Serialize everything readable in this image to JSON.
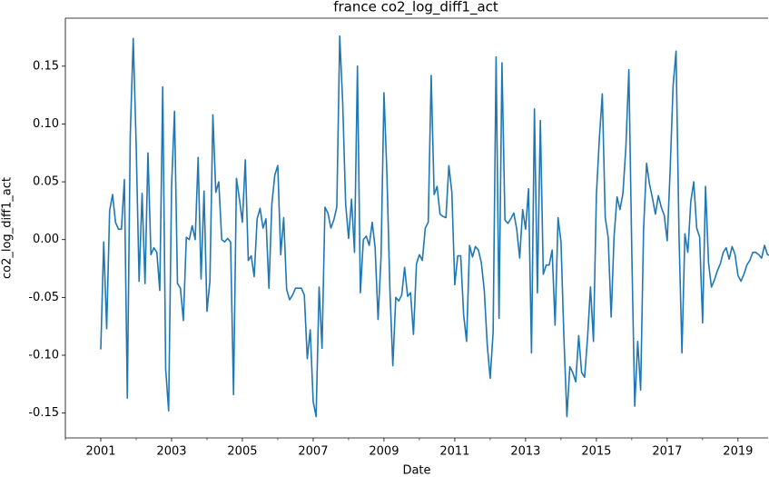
{
  "chart_data": {
    "type": "line",
    "title": "france co2_log_diff1_act",
    "xlabel": "Date",
    "ylabel": "co2_log_diff1_act",
    "xlim": [
      2000,
      2019.85
    ],
    "xticks": [
      2001,
      2003,
      2005,
      2007,
      2009,
      2011,
      2013,
      2015,
      2017,
      2019
    ],
    "xminorticks": [
      2000,
      2002,
      2004,
      2006,
      2008,
      2010,
      2012,
      2014,
      2016,
      2018
    ],
    "ylim": [
      -0.1715,
      0.1915
    ],
    "yticks": [
      {
        "value": -0.15,
        "label": "-0.15"
      },
      {
        "value": -0.1,
        "label": "-0.10"
      },
      -0.05,
      {
        "value": 0,
        "label": "0.00"
      },
      0.05,
      {
        "value": 0.1,
        "label": "0.10"
      },
      0.15
    ],
    "x": [
      2001,
      2001.083,
      2001.167,
      2001.25,
      2001.333,
      2001.417,
      2001.5,
      2001.583,
      2001.667,
      2001.75,
      2001.833,
      2001.917,
      2002,
      2002.083,
      2002.167,
      2002.25,
      2002.333,
      2002.417,
      2002.5,
      2002.583,
      2002.667,
      2002.75,
      2002.833,
      2002.917,
      2003,
      2003.083,
      2003.167,
      2003.25,
      2003.333,
      2003.417,
      2003.5,
      2003.583,
      2003.667,
      2003.75,
      2003.833,
      2003.917,
      2004,
      2004.083,
      2004.167,
      2004.25,
      2004.333,
      2004.417,
      2004.5,
      2004.583,
      2004.667,
      2004.75,
      2004.833,
      2004.917,
      2005,
      2005.083,
      2005.167,
      2005.25,
      2005.333,
      2005.417,
      2005.5,
      2005.583,
      2005.667,
      2005.75,
      2005.833,
      2005.917,
      2006,
      2006.083,
      2006.167,
      2006.25,
      2006.333,
      2006.417,
      2006.5,
      2006.583,
      2006.667,
      2006.75,
      2006.833,
      2006.917,
      2007,
      2007.083,
      2007.167,
      2007.25,
      2007.333,
      2007.417,
      2007.5,
      2007.583,
      2007.667,
      2007.75,
      2007.833,
      2007.917,
      2008,
      2008.083,
      2008.167,
      2008.25,
      2008.333,
      2008.417,
      2008.5,
      2008.583,
      2008.667,
      2008.75,
      2008.833,
      2008.917,
      2009,
      2009.083,
      2009.167,
      2009.25,
      2009.333,
      2009.417,
      2009.5,
      2009.583,
      2009.667,
      2009.75,
      2009.833,
      2009.917,
      2010,
      2010.083,
      2010.167,
      2010.25,
      2010.333,
      2010.417,
      2010.5,
      2010.583,
      2010.667,
      2010.75,
      2010.833,
      2010.917,
      2011,
      2011.083,
      2011.167,
      2011.25,
      2011.333,
      2011.417,
      2011.5,
      2011.583,
      2011.667,
      2011.75,
      2011.833,
      2011.917,
      2012,
      2012.083,
      2012.167,
      2012.25,
      2012.333,
      2012.417,
      2012.5,
      2012.583,
      2012.667,
      2012.75,
      2012.833,
      2012.917,
      2013,
      2013.083,
      2013.167,
      2013.25,
      2013.333,
      2013.417,
      2013.5,
      2013.583,
      2013.667,
      2013.75,
      2013.833,
      2013.917,
      2014,
      2014.083,
      2014.167,
      2014.25,
      2014.333,
      2014.417,
      2014.5,
      2014.583,
      2014.667,
      2014.75,
      2014.833,
      2014.917,
      2015,
      2015.083,
      2015.167,
      2015.25,
      2015.333,
      2015.417,
      2015.5,
      2015.583,
      2015.667,
      2015.75,
      2015.833,
      2015.917,
      2016,
      2016.083,
      2016.167,
      2016.25,
      2016.333,
      2016.417,
      2016.5,
      2016.583,
      2016.667,
      2016.75,
      2016.833,
      2016.917,
      2017,
      2017.083,
      2017.167,
      2017.25,
      2017.333,
      2017.417,
      2017.5,
      2017.583,
      2017.667,
      2017.75,
      2017.833,
      2017.917,
      2018,
      2018.083,
      2018.167,
      2018.25,
      2018.333,
      2018.417,
      2018.5,
      2018.583,
      2018.667,
      2018.75,
      2018.833,
      2018.917,
      2019,
      2019.083,
      2019.167,
      2019.25,
      2019.333,
      2019.417,
      2019.5,
      2019.583,
      2019.667,
      2019.75,
      2019.833,
      2019.917
    ],
    "series": [
      {
        "color": "#1f77b4",
        "values": [
          -0.095,
          -0.002,
          -0.077,
          0.025,
          0.039,
          0.015,
          0.009,
          0.009,
          0.052,
          -0.137,
          0.09,
          0.174,
          0.082,
          -0.036,
          0.04,
          -0.038,
          0.075,
          -0.013,
          -0.007,
          -0.011,
          -0.044,
          0.132,
          -0.112,
          -0.148,
          0.046,
          0.111,
          -0.038,
          -0.042,
          -0.07,
          0.002,
          0.0,
          0.012,
          0.0,
          0.071,
          -0.034,
          0.042,
          -0.062,
          -0.036,
          0.108,
          0.041,
          0.05,
          0.0,
          -0.002,
          0.001,
          -0.002,
          -0.134,
          0.053,
          0.035,
          0.015,
          0.069,
          -0.018,
          -0.014,
          -0.032,
          0.018,
          0.027,
          0.01,
          0.018,
          -0.042,
          0.031,
          0.056,
          0.064,
          -0.013,
          0.019,
          -0.043,
          -0.052,
          -0.048,
          -0.042,
          -0.042,
          -0.042,
          -0.048,
          -0.103,
          -0.078,
          -0.14,
          -0.153,
          -0.041,
          -0.094,
          0.028,
          0.023,
          0.01,
          0.017,
          0.028,
          0.176,
          0.119,
          0.031,
          0.001,
          0.035,
          -0.011,
          0.15,
          -0.046,
          0.0,
          0.003,
          -0.005,
          0.015,
          -0.007,
          -0.069,
          -0.015,
          0.127,
          0.057,
          -0.043,
          -0.109,
          -0.05,
          -0.053,
          -0.048,
          -0.024,
          -0.049,
          -0.046,
          -0.082,
          -0.021,
          -0.013,
          -0.018,
          0.01,
          0.015,
          0.142,
          0.039,
          0.046,
          0.022,
          0.02,
          0.019,
          0.064,
          0.041,
          -0.039,
          -0.014,
          -0.014,
          -0.065,
          -0.088,
          -0.005,
          -0.015,
          -0.006,
          -0.009,
          -0.02,
          -0.044,
          -0.091,
          -0.12,
          -0.08,
          0.158,
          -0.068,
          0.153,
          0.017,
          0.014,
          0.018,
          0.023,
          0.009,
          -0.016,
          0.026,
          0.009,
          0.044,
          -0.098,
          0.113,
          -0.046,
          0.103,
          -0.03,
          -0.022,
          -0.022,
          -0.009,
          -0.074,
          0.019,
          -0.002,
          -0.085,
          -0.153,
          -0.11,
          -0.115,
          -0.123,
          -0.083,
          -0.115,
          -0.119,
          -0.085,
          -0.041,
          -0.088,
          0.039,
          0.087,
          0.126,
          0.019,
          0.002,
          -0.067,
          0.003,
          0.037,
          0.026,
          0.04,
          0.08,
          0.147,
          -0.011,
          -0.144,
          -0.088,
          -0.13,
          0.009,
          0.066,
          0.048,
          0.036,
          0.022,
          0.038,
          0.028,
          0.021,
          -0.001,
          0.06,
          0.133,
          0.163,
          0.005,
          -0.098,
          0.005,
          -0.011,
          0.033,
          0.05,
          0.01,
          0.002,
          -0.072,
          0.046,
          -0.02,
          -0.041,
          -0.035,
          -0.027,
          -0.021,
          -0.011,
          -0.007,
          -0.017,
          -0.006,
          -0.013,
          -0.031,
          -0.036,
          -0.03,
          -0.022,
          -0.018,
          -0.011,
          -0.011,
          -0.013,
          -0.016,
          -0.005,
          -0.013,
          -0.014
        ]
      }
    ]
  }
}
